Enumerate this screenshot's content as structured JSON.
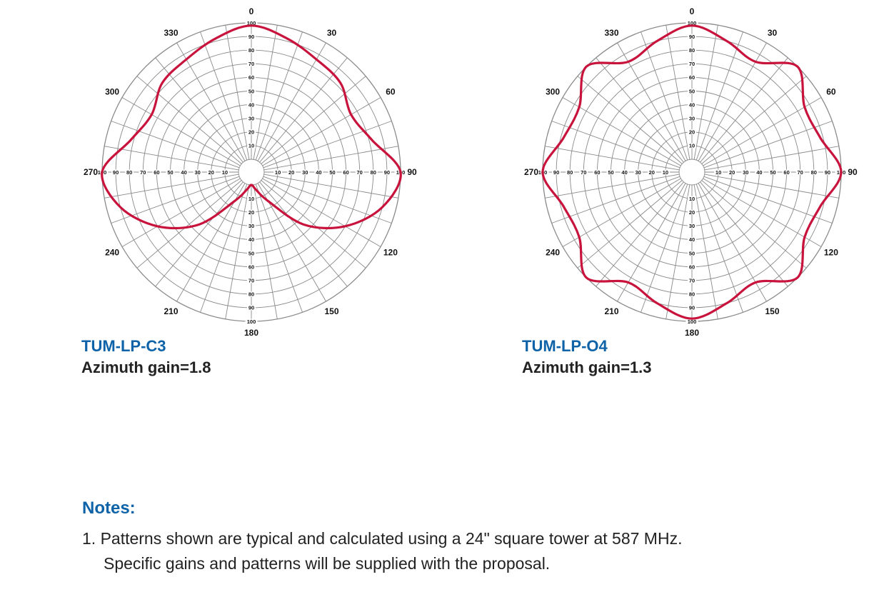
{
  "colors": {
    "accent": "#0e63a8",
    "pattern": "#c8143c",
    "grid": "#8a8a8a",
    "text": "#222222"
  },
  "chart_data": [
    {
      "type": "polar-line",
      "model": "TUM-LP-C3",
      "gain_label": "Azimuth gain=1.8",
      "angle_labels": [
        "0",
        "30",
        "60",
        "90",
        "120",
        "150",
        "180",
        "210",
        "240",
        "270",
        "300",
        "330"
      ],
      "radial_ticks": [
        "10",
        "20",
        "30",
        "40",
        "50",
        "60",
        "70",
        "80",
        "90",
        "100"
      ],
      "rlim": [
        0,
        100
      ],
      "angles_deg": [
        0,
        15,
        30,
        45,
        60,
        75,
        90,
        105,
        120,
        135,
        150,
        165,
        180,
        195,
        210,
        225,
        240,
        255,
        270,
        285,
        300,
        315,
        330,
        345
      ],
      "values": [
        98,
        92,
        86,
        83,
        75,
        82,
        100,
        90,
        70,
        45,
        15,
        4,
        0,
        4,
        15,
        45,
        70,
        90,
        100,
        82,
        75,
        83,
        86,
        92
      ]
    },
    {
      "type": "polar-line",
      "model": "TUM-LP-O4",
      "gain_label": "Azimuth gain=1.3",
      "angle_labels": [
        "0",
        "30",
        "60",
        "90",
        "120",
        "150",
        "180",
        "210",
        "240",
        "270",
        "300",
        "330"
      ],
      "radial_ticks": [
        "10",
        "20",
        "30",
        "40",
        "50",
        "60",
        "70",
        "80",
        "90",
        "100"
      ],
      "rlim": [
        0,
        100
      ],
      "angles_deg": [
        0,
        15,
        30,
        45,
        60,
        75,
        90,
        105,
        120,
        135,
        150,
        165,
        180,
        195,
        210,
        225,
        240,
        255,
        270,
        285,
        300,
        315,
        330,
        345
      ],
      "values": [
        98,
        90,
        84,
        100,
        86,
        88,
        100,
        88,
        86,
        100,
        84,
        90,
        98,
        90,
        84,
        100,
        86,
        88,
        100,
        88,
        86,
        100,
        84,
        90
      ]
    }
  ],
  "notes": {
    "heading": "Notes:",
    "line1": "1. Patterns shown are typical and calculated using a 24\" square tower at 587 MHz.",
    "line2": "Specific gains and patterns will be supplied with the proposal."
  }
}
